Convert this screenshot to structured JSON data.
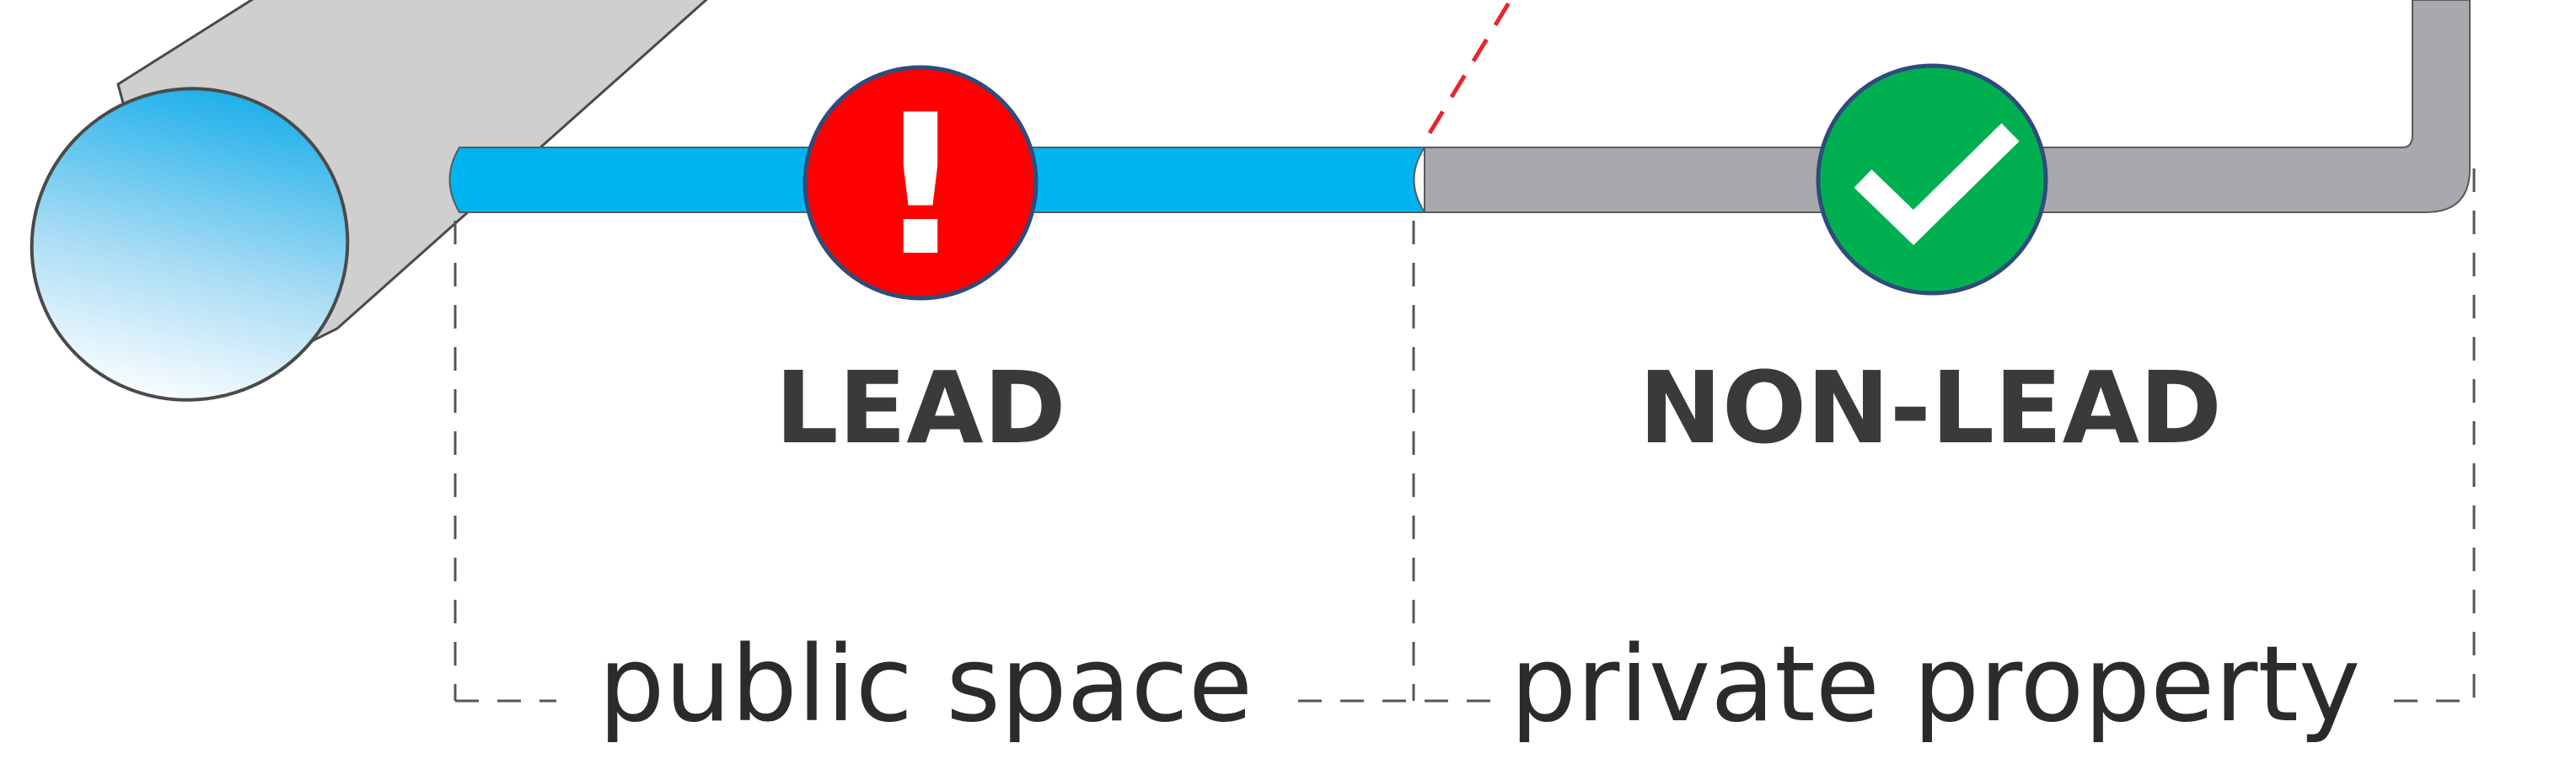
{
  "segments": [
    {
      "material": "LEAD",
      "zone": "public space",
      "status": "warning",
      "status_icon": "exclamation-icon",
      "pipe_color": "#00b5ef",
      "badge_color": "#ff0000"
    },
    {
      "material": "NON-LEAD",
      "zone": "private property",
      "status": "ok",
      "status_icon": "checkmark-icon",
      "pipe_color": "#a7a9ac",
      "badge_color": "#00b050"
    }
  ],
  "warning_glyph": "!",
  "colors": {
    "main_pipe": "#cfcfd0",
    "main_pipe_opening": "#35b5ea",
    "boundary_marker": "#e8262a",
    "dimension_lines": "#555555"
  }
}
